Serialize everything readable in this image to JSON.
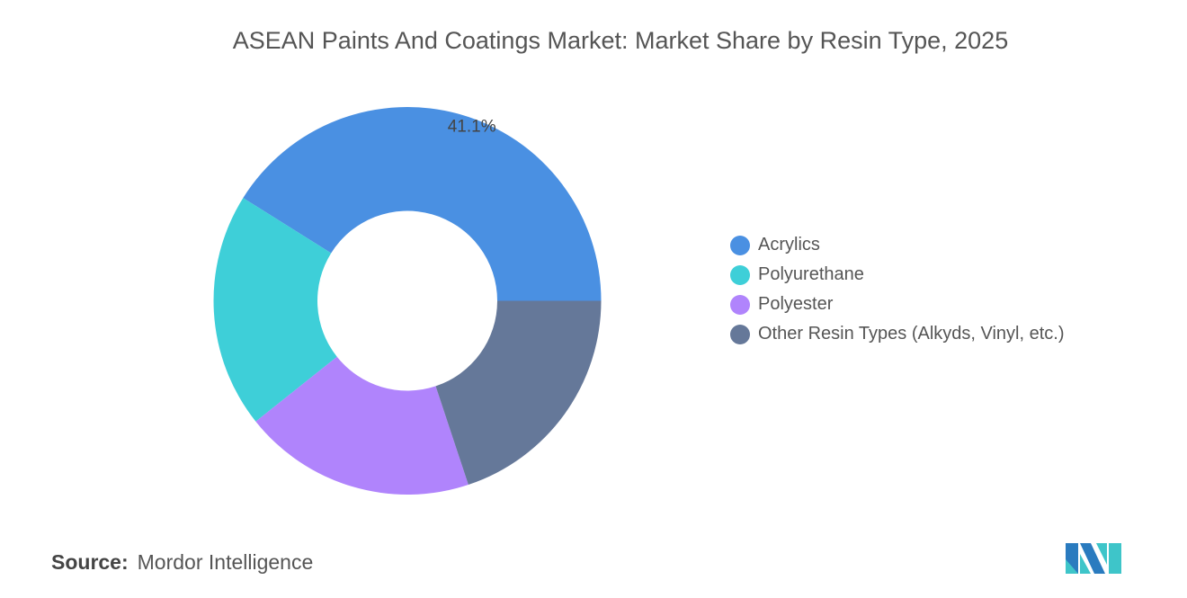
{
  "chart_data": {
    "type": "pie",
    "donut": true,
    "title": "ASEAN Paints And Coatings Market: Market Share by Resin Type, 2025",
    "categories": [
      "Acrylics",
      "Polyurethane",
      "Polyester",
      "Other Resin Types (Alkyds, Vinyl, etc.)"
    ],
    "values": [
      41.1,
      19.6,
      19.4,
      19.9
    ],
    "data_labels": [
      "41.1%",
      "",
      "",
      ""
    ],
    "colors": [
      "#4a90e2",
      "#3ecfd8",
      "#b084fc",
      "#657899"
    ],
    "legend_position": "right"
  },
  "source": {
    "label": "Source:",
    "text": "Mordor Intelligence"
  },
  "logo": {
    "colors": [
      "#2a7bbf",
      "#3ec5c9"
    ]
  }
}
